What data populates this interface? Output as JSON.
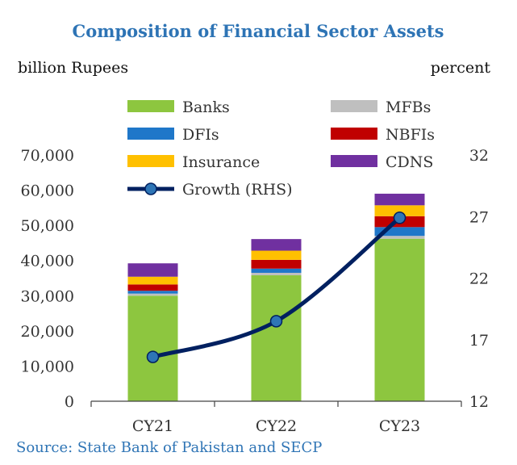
{
  "chart_data": {
    "type": "bar",
    "stacked": true,
    "title": "Composition of Financial Sector Assets",
    "ylabel_left": "billion Rupees",
    "ylabel_right": "percent",
    "categories": [
      "CY21",
      "CY22",
      "CY23"
    ],
    "ylim_left": [
      0,
      70000
    ],
    "yticks_left": [
      "0",
      "10,000",
      "20,000",
      "30,000",
      "40,000",
      "50,000",
      "60,000",
      "70,000"
    ],
    "ylim_right": [
      12,
      32
    ],
    "yticks_right": [
      "12",
      "17",
      "22",
      "27",
      "32"
    ],
    "series": [
      {
        "name": "Banks",
        "color": "#8dc63f",
        "values": [
          30000,
          35800,
          46200
        ]
      },
      {
        "name": "MFBs",
        "color": "#bfbfbf",
        "values": [
          600,
          700,
          800
        ]
      },
      {
        "name": "DFIs",
        "color": "#1f77c9",
        "values": [
          800,
          1200,
          2500
        ]
      },
      {
        "name": "NBFIs",
        "color": "#c00000",
        "values": [
          1800,
          2500,
          3100
        ]
      },
      {
        "name": "Insurance",
        "color": "#ffc000",
        "values": [
          2200,
          2600,
          3100
        ]
      },
      {
        "name": "CDNS",
        "color": "#7030a0",
        "values": [
          3800,
          3300,
          3300
        ]
      }
    ],
    "line": {
      "name": "Growth (RHS)",
      "color": "#002060",
      "marker_color": "#2e75b6",
      "values": [
        15.6,
        18.5,
        26.9
      ]
    },
    "legend_position": "top",
    "grid": false,
    "source": "Source: State Bank of Pakistan and SECP"
  }
}
